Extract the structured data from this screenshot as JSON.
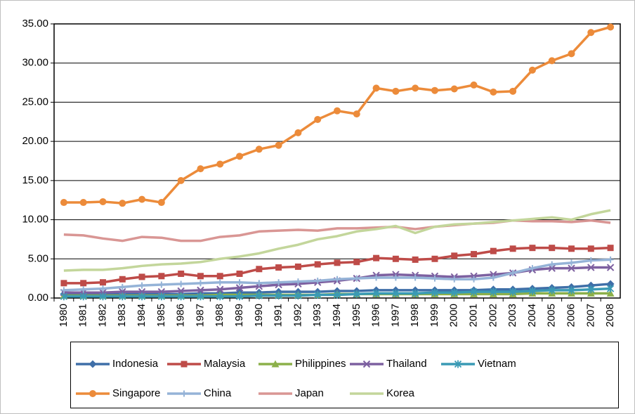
{
  "chart_data": {
    "type": "line",
    "categories": [
      "1980",
      "1981",
      "1982",
      "1983",
      "1984",
      "1985",
      "1986",
      "1987",
      "1988",
      "1989",
      "1990",
      "1991",
      "1992",
      "1993",
      "1994",
      "1995",
      "1996",
      "1997",
      "1998",
      "1999",
      "2000",
      "2001",
      "2002",
      "2003",
      "2004",
      "2005",
      "2006",
      "2007",
      "2008"
    ],
    "series": [
      {
        "name": "Indonesia",
        "color": "#3f6fa8",
        "marker": "diamond",
        "values": [
          0.5,
          0.5,
          0.5,
          0.5,
          0.5,
          0.5,
          0.5,
          0.6,
          0.6,
          0.7,
          0.7,
          0.8,
          0.8,
          0.8,
          0.9,
          0.9,
          1.0,
          1.0,
          1.0,
          1.0,
          1.0,
          1.0,
          1.1,
          1.1,
          1.2,
          1.3,
          1.4,
          1.6,
          1.8
        ]
      },
      {
        "name": "Malaysia",
        "color": "#be4b48",
        "marker": "square",
        "values": [
          1.9,
          1.9,
          2.0,
          2.4,
          2.7,
          2.8,
          3.1,
          2.8,
          2.8,
          3.1,
          3.7,
          3.9,
          4.0,
          4.3,
          4.5,
          4.6,
          5.1,
          5.0,
          4.9,
          5.0,
          5.4,
          5.6,
          6.0,
          6.3,
          6.4,
          6.4,
          6.3,
          6.3,
          6.4
        ]
      },
      {
        "name": "Philippines",
        "color": "#8cb04a",
        "marker": "triangle",
        "values": [
          0.3,
          0.3,
          0.3,
          0.3,
          0.3,
          0.3,
          0.3,
          0.3,
          0.4,
          0.4,
          0.4,
          0.4,
          0.4,
          0.4,
          0.5,
          0.5,
          0.5,
          0.5,
          0.5,
          0.5,
          0.5,
          0.5,
          0.5,
          0.5,
          0.6,
          0.6,
          0.6,
          0.6,
          0.6
        ]
      },
      {
        "name": "Thailand",
        "color": "#7d60a0",
        "marker": "x",
        "values": [
          0.7,
          0.7,
          0.7,
          0.8,
          0.8,
          0.8,
          0.9,
          1.0,
          1.1,
          1.3,
          1.5,
          1.7,
          1.8,
          2.0,
          2.2,
          2.5,
          2.9,
          3.0,
          2.9,
          2.8,
          2.7,
          2.8,
          3.0,
          3.2,
          3.6,
          3.8,
          3.8,
          3.9,
          3.9
        ]
      },
      {
        "name": "Vietnam",
        "color": "#3a9ab5",
        "marker": "asterisk",
        "values": [
          0.2,
          0.2,
          0.2,
          0.2,
          0.2,
          0.2,
          0.2,
          0.2,
          0.2,
          0.2,
          0.3,
          0.3,
          0.3,
          0.4,
          0.4,
          0.5,
          0.6,
          0.6,
          0.6,
          0.7,
          0.7,
          0.8,
          0.8,
          0.8,
          0.9,
          1.0,
          1.0,
          1.1,
          1.2
        ]
      },
      {
        "name": "Singapore",
        "color": "#ec8b3a",
        "marker": "circle",
        "values": [
          12.2,
          12.2,
          12.3,
          12.1,
          12.6,
          12.2,
          15.0,
          16.5,
          17.1,
          18.1,
          19.0,
          19.5,
          21.1,
          22.8,
          23.9,
          23.5,
          26.8,
          26.4,
          26.8,
          26.5,
          26.7,
          27.2,
          26.3,
          26.4,
          29.1,
          30.3,
          31.2,
          33.9,
          34.6
        ]
      },
      {
        "name": "China",
        "color": "#95b3d7",
        "marker": "plus",
        "values": [
          1.0,
          1.1,
          1.2,
          1.4,
          1.6,
          1.7,
          1.8,
          1.9,
          2.0,
          2.0,
          1.9,
          2.0,
          2.1,
          2.2,
          2.4,
          2.5,
          2.6,
          2.6,
          2.6,
          2.5,
          2.4,
          2.4,
          2.6,
          3.2,
          3.8,
          4.3,
          4.5,
          4.8,
          4.9
        ]
      },
      {
        "name": "Japan",
        "color": "#d99694",
        "marker": "none",
        "values": [
          8.1,
          8.0,
          7.6,
          7.3,
          7.8,
          7.7,
          7.3,
          7.3,
          7.8,
          8.0,
          8.5,
          8.6,
          8.7,
          8.6,
          8.9,
          8.9,
          9.0,
          9.1,
          8.8,
          9.1,
          9.3,
          9.5,
          9.6,
          9.9,
          9.8,
          9.8,
          9.7,
          9.9,
          9.6
        ]
      },
      {
        "name": "Korea",
        "color": "#c3d69b",
        "marker": "none",
        "values": [
          3.5,
          3.6,
          3.6,
          3.8,
          4.1,
          4.3,
          4.4,
          4.6,
          5.0,
          5.3,
          5.7,
          6.3,
          6.8,
          7.5,
          7.9,
          8.5,
          8.8,
          9.2,
          8.3,
          9.1,
          9.4,
          9.5,
          9.7,
          9.9,
          10.1,
          10.3,
          10.0,
          10.7,
          11.2
        ]
      }
    ],
    "ylim": [
      0,
      35
    ],
    "yticks": [
      {
        "value": 0,
        "label": "0.00"
      },
      {
        "value": 5,
        "label": "5.00"
      },
      {
        "value": 10,
        "label": "10.00"
      },
      {
        "value": 15,
        "label": "15.00"
      },
      {
        "value": 20,
        "label": "20.00"
      },
      {
        "value": 25,
        "label": "25.00"
      },
      {
        "value": 30,
        "label": "30.00"
      },
      {
        "value": 35,
        "label": "35.00"
      }
    ],
    "grid": true,
    "legend": "bottom"
  }
}
